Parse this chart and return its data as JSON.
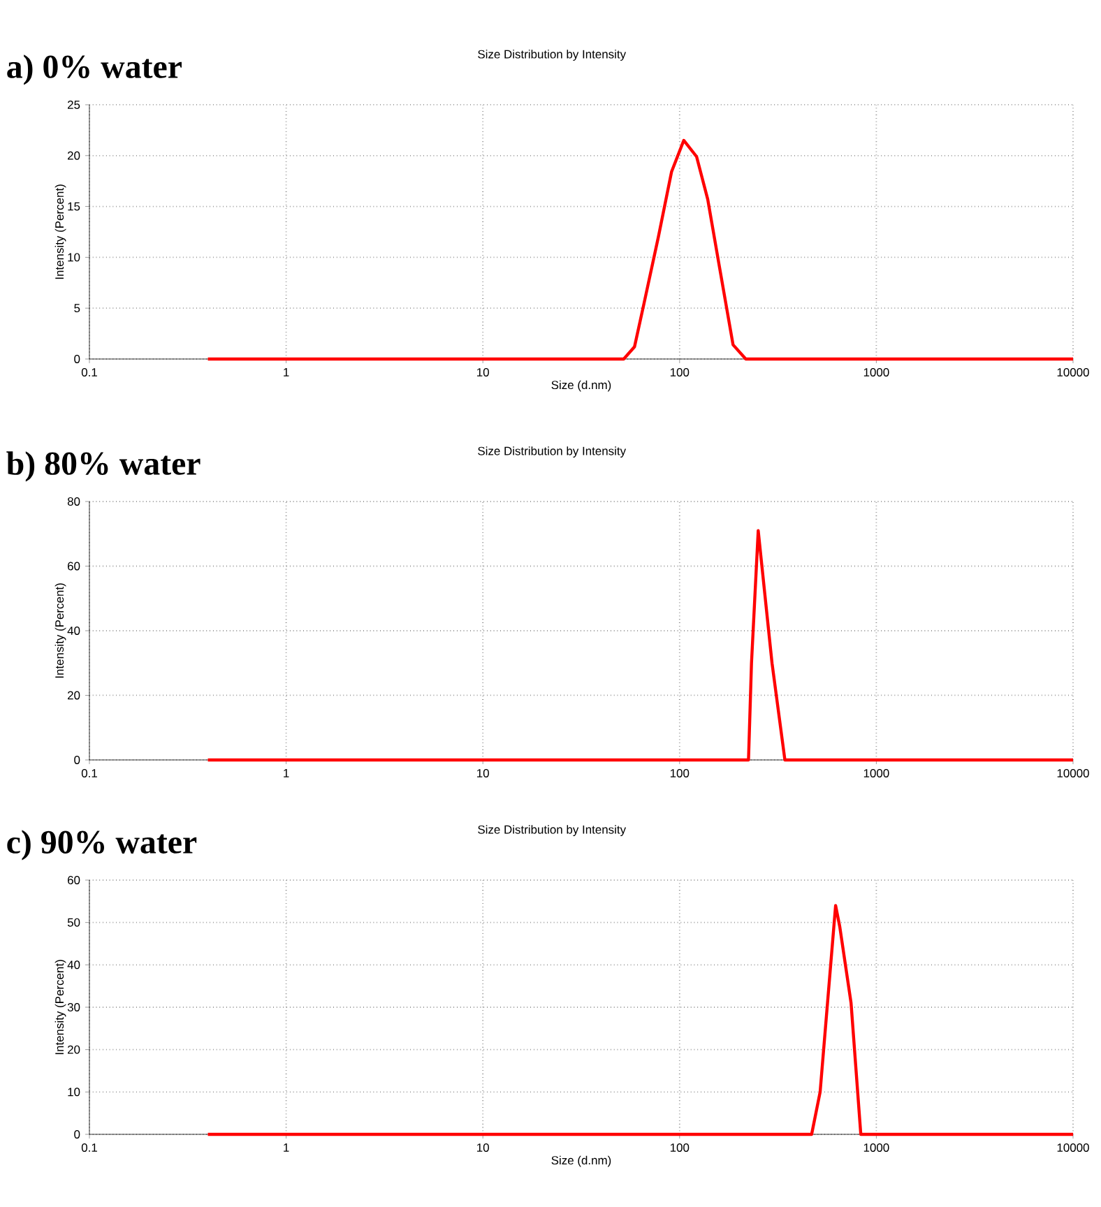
{
  "chart_data": [
    {
      "type": "line",
      "subtitle": "a)     0% water",
      "title": "Size Distribution by Intensity",
      "xlabel": "Size (d.nm)",
      "ylabel": "Intensity (Percent)",
      "log": "x",
      "grid": true,
      "xlim": [
        0.1,
        10000
      ],
      "ylim": [
        0,
        25
      ],
      "xticks": [
        0.1,
        1,
        10,
        100,
        1000,
        10000
      ],
      "yticks": [
        0,
        5,
        10,
        15,
        20,
        25
      ],
      "series": [
        {
          "color": "#ff0000",
          "x": [
            0.4,
            52,
            59,
            66,
            78,
            91,
            105,
            122,
            139,
            159,
            187,
            217,
            10000
          ],
          "values": [
            0,
            0,
            1.2,
            5.5,
            12,
            18.4,
            21.5,
            19.9,
            15.7,
            9.2,
            1.4,
            0,
            0
          ]
        }
      ]
    },
    {
      "type": "line",
      "subtitle": "b)     80% water",
      "title": "Size Distribution by Intensity",
      "ylabel": "Intensity (Percent)",
      "log": "x",
      "grid": true,
      "xlim": [
        0.1,
        10000
      ],
      "ylim": [
        0,
        80
      ],
      "xticks": [
        0.1,
        1,
        10,
        100,
        1000,
        10000
      ],
      "yticks": [
        0,
        20,
        40,
        60,
        80
      ],
      "series": [
        {
          "color": "#ff0000",
          "x": [
            0.4,
            224,
            232,
            251,
            260,
            295,
            343,
            10000
          ],
          "values": [
            0,
            0,
            30,
            71,
            62,
            30,
            0,
            0
          ]
        }
      ]
    },
    {
      "type": "line",
      "subtitle": "c)     90% water",
      "title": "Size Distribution by Intensity",
      "xlabel": "Size (d.nm)",
      "ylabel": "Intensity (Percent)",
      "log": "x",
      "grid": true,
      "xlim": [
        0.1,
        10000
      ],
      "ylim": [
        0,
        60
      ],
      "xticks": [
        0.1,
        1,
        10,
        100,
        1000,
        10000
      ],
      "yticks": [
        0,
        10,
        20,
        30,
        40,
        50,
        60
      ],
      "series": [
        {
          "color": "#ff0000",
          "x": [
            0.4,
            469,
            518,
            621,
            652,
            744,
            834,
            10000
          ],
          "values": [
            0,
            0,
            10,
            54,
            49,
            31,
            0,
            0
          ]
        }
      ]
    }
  ]
}
